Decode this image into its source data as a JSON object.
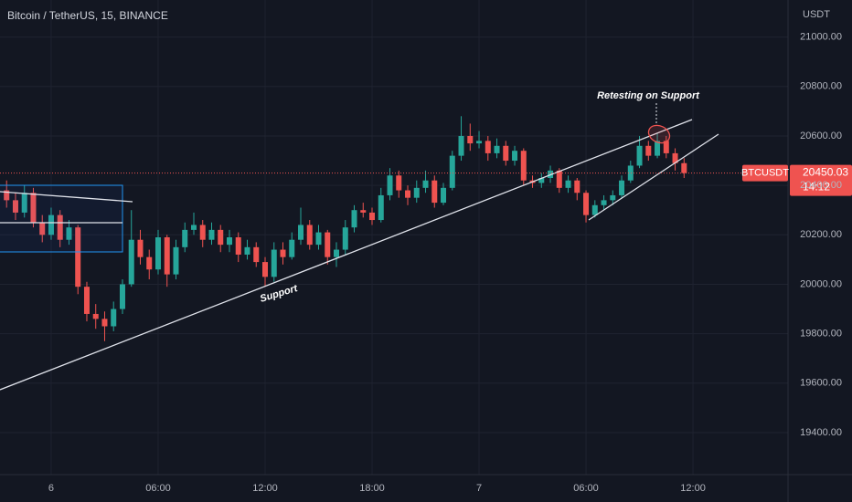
{
  "chart_data": {
    "type": "candlestick",
    "title": "Bitcoin / TetherUS, 15, BINANCE",
    "y_axis_label": "USDT",
    "symbol_tag": "BTCUSDT",
    "countdown": "14:12",
    "annotations": [
      "Support",
      "Retesting on Support"
    ],
    "up_color": "#26a69a",
    "down_color": "#ef5350",
    "grid": true,
    "xlim": [
      -2.87,
      41.33
    ],
    "ylim": [
      19230,
      21150
    ],
    "xticks": [
      {
        "value": 0,
        "label": "6"
      },
      {
        "value": 6,
        "label": "06:00"
      },
      {
        "value": 12,
        "label": "12:00"
      },
      {
        "value": 18,
        "label": "18:00"
      },
      {
        "value": 24,
        "label": "7"
      },
      {
        "value": 30,
        "label": "06:00"
      },
      {
        "value": 36,
        "label": "12:00"
      }
    ],
    "yticks": [
      {
        "value": 19400,
        "label": "19400.00"
      },
      {
        "value": 19600,
        "label": "19600.00"
      },
      {
        "value": 19800,
        "label": "19800.00"
      },
      {
        "value": 20000,
        "label": "20000.00"
      },
      {
        "value": 20200,
        "label": "20200.00"
      },
      {
        "value": 20400,
        "label": "20400.00"
      },
      {
        "value": 20600,
        "label": "20600.00"
      },
      {
        "value": 20800,
        "label": "20800.00"
      },
      {
        "value": 21000,
        "label": "21000.00"
      }
    ],
    "x": [
      -2.5,
      -2,
      -1.5,
      -1,
      -0.5,
      0,
      0.5,
      1,
      1.5,
      2,
      2.5,
      3,
      3.5,
      4,
      4.5,
      5,
      5.5,
      6,
      6.5,
      7,
      7.5,
      8,
      8.5,
      9,
      9.5,
      10,
      10.5,
      11,
      11.5,
      12,
      12.5,
      13,
      13.5,
      14,
      14.5,
      15,
      15.5,
      16,
      16.5,
      17,
      17.5,
      18,
      18.5,
      19,
      19.5,
      20,
      20.5,
      21,
      21.5,
      22,
      22.5,
      23,
      23.5,
      24,
      24.5,
      25,
      25.5,
      26,
      26.5,
      27,
      27.5,
      28,
      28.5,
      29,
      29.5,
      30,
      30.5,
      31,
      31.5,
      32,
      32.5,
      33,
      33.5,
      34,
      34.5,
      35,
      35.5
    ],
    "open": [
      20380,
      20340,
      20290,
      20370,
      20250,
      20200,
      20280,
      20180,
      20230,
      19990,
      19880,
      19860,
      19830,
      19900,
      20000,
      20180,
      20110,
      20060,
      20190,
      20040,
      20150,
      20220,
      20240,
      20180,
      20220,
      20160,
      20190,
      20120,
      20150,
      20090,
      20030,
      20140,
      20110,
      20180,
      20240,
      20160,
      20210,
      20110,
      20140,
      20230,
      20300,
      20290,
      20260,
      20360,
      20440,
      20380,
      20350,
      20390,
      20420,
      20330,
      20390,
      20520,
      20600,
      20570,
      20580,
      20530,
      20560,
      20500,
      20540,
      20420,
      20410,
      20430,
      20460,
      20390,
      20420,
      20370,
      20280,
      20320,
      20340,
      20360,
      20420,
      20480,
      20560,
      20520,
      20580,
      20530,
      20490
    ],
    "high": [
      20420,
      20370,
      20400,
      20390,
      20280,
      20310,
      20300,
      20260,
      20240,
      20010,
      19920,
      19890,
      19930,
      20020,
      20300,
      20220,
      20140,
      20220,
      20200,
      20180,
      20250,
      20290,
      20260,
      20250,
      20240,
      20220,
      20210,
      20180,
      20170,
      20110,
      20170,
      20170,
      20210,
      20310,
      20260,
      20240,
      20220,
      20170,
      20260,
      20320,
      20330,
      20310,
      20390,
      20470,
      20460,
      20400,
      20420,
      20460,
      20440,
      20410,
      20540,
      20680,
      20650,
      20620,
      20600,
      20590,
      20580,
      20560,
      20550,
      20440,
      20450,
      20480,
      20470,
      20440,
      20430,
      20380,
      20340,
      20360,
      20380,
      20440,
      20500,
      20600,
      20580,
      20610,
      20600,
      20550,
      20510
    ],
    "low": [
      20310,
      20260,
      20270,
      20230,
      20170,
      20180,
      20150,
      20160,
      19960,
      19850,
      19820,
      19770,
      19810,
      19880,
      19990,
      20080,
      20020,
      20040,
      19990,
      20020,
      20130,
      20200,
      20150,
      20160,
      20130,
      20130,
      20090,
      20100,
      20070,
      19990,
      20010,
      20080,
      20100,
      20160,
      20140,
      20140,
      20080,
      20070,
      20120,
      20210,
      20270,
      20240,
      20250,
      20340,
      20350,
      20320,
      20330,
      20370,
      20310,
      20320,
      20380,
      20500,
      20540,
      20550,
      20500,
      20510,
      20480,
      20480,
      20400,
      20390,
      20390,
      20410,
      20370,
      20370,
      20340,
      20250,
      20270,
      20300,
      20320,
      20350,
      20410,
      20470,
      20500,
      20510,
      20510,
      20460,
      20430
    ],
    "close": [
      20340,
      20290,
      20370,
      20250,
      20200,
      20280,
      20180,
      20230,
      19990,
      19880,
      19860,
      19830,
      19900,
      20000,
      20180,
      20110,
      20060,
      20190,
      20040,
      20150,
      20220,
      20240,
      20180,
      20220,
      20160,
      20190,
      20120,
      20150,
      20090,
      20030,
      20140,
      20110,
      20180,
      20240,
      20160,
      20210,
      20110,
      20140,
      20230,
      20300,
      20290,
      20260,
      20360,
      20440,
      20380,
      20350,
      20390,
      20420,
      20330,
      20390,
      20520,
      20600,
      20570,
      20580,
      20530,
      20560,
      20500,
      20540,
      20420,
      20410,
      20430,
      20460,
      20390,
      20420,
      20370,
      20280,
      20320,
      20340,
      20360,
      20420,
      20480,
      20560,
      20520,
      20580,
      20530,
      20490,
      20450.03
    ]
  }
}
